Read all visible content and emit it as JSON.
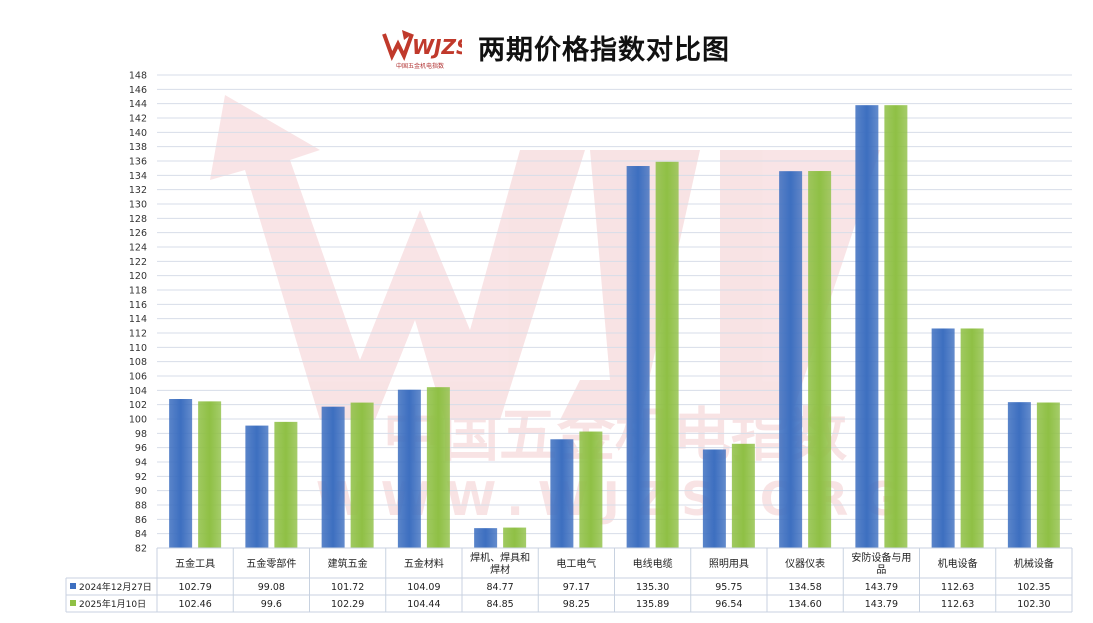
{
  "chart_data": {
    "type": "bar",
    "title": "两期价格指数对比图",
    "logo_text": "WJZS",
    "logo_subtext": "中国五金机电指数",
    "watermark_lines": [
      "中国五金机电指数",
      "WWW.WJZS.ORG"
    ],
    "categories": [
      "五金工具",
      "五金零部件",
      "建筑五金",
      "五金材料",
      "焊机、焊具和焊材",
      "电工电气",
      "电线电缆",
      "照明用具",
      "仪器仪表",
      "安防设备与用品",
      "机电设备",
      "机械设备"
    ],
    "series": [
      {
        "name": "2024年12月27日",
        "color": "#3d6fc0",
        "values": [
          102.79,
          99.08,
          101.72,
          104.09,
          84.77,
          97.17,
          135.3,
          95.75,
          134.58,
          143.79,
          112.63,
          102.35
        ],
        "labels": [
          "102.79",
          "99.08",
          "101.72",
          "104.09",
          "84.77",
          "97.17",
          "135.30",
          "95.75",
          "134.58",
          "143.79",
          "112.63",
          "102.35"
        ]
      },
      {
        "name": "2025年1月10日",
        "color": "#8fc045",
        "values": [
          102.46,
          99.6,
          102.29,
          104.44,
          84.85,
          98.25,
          135.89,
          96.54,
          134.6,
          143.79,
          112.63,
          102.3
        ],
        "labels": [
          "102.46",
          "99.6",
          "102.29",
          "104.44",
          "84.85",
          "98.25",
          "135.89",
          "96.54",
          "134.60",
          "143.79",
          "112.63",
          "102.30"
        ]
      }
    ],
    "ylim": [
      82,
      148
    ],
    "ytick_step": 2,
    "grid": true,
    "legend": "data-table"
  }
}
